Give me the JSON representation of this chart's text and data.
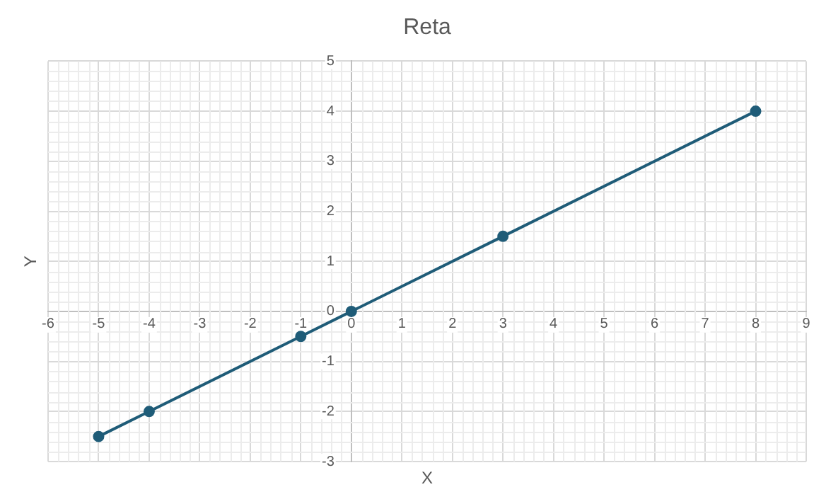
{
  "chart_data": {
    "type": "line",
    "title": "Reta",
    "xlabel": "X",
    "ylabel": "Y",
    "x": [
      -5,
      -4,
      -1,
      0,
      3,
      8
    ],
    "series": [
      {
        "color": "#1f5c78",
        "values": [
          -2.5,
          -2,
          -0.5,
          0,
          1.5,
          4
        ]
      }
    ],
    "xlim": [
      -6,
      9
    ],
    "xticks": [
      -6,
      -5,
      -4,
      -3,
      -2,
      -1,
      0,
      1,
      2,
      3,
      4,
      5,
      6,
      7,
      8,
      9
    ],
    "ylim": [
      -3,
      5
    ],
    "yticks": [
      -3,
      -2,
      -1,
      0,
      1,
      2,
      3,
      4,
      5
    ],
    "grid": true,
    "marker": "circle",
    "line_style": "solid",
    "legend": false
  }
}
